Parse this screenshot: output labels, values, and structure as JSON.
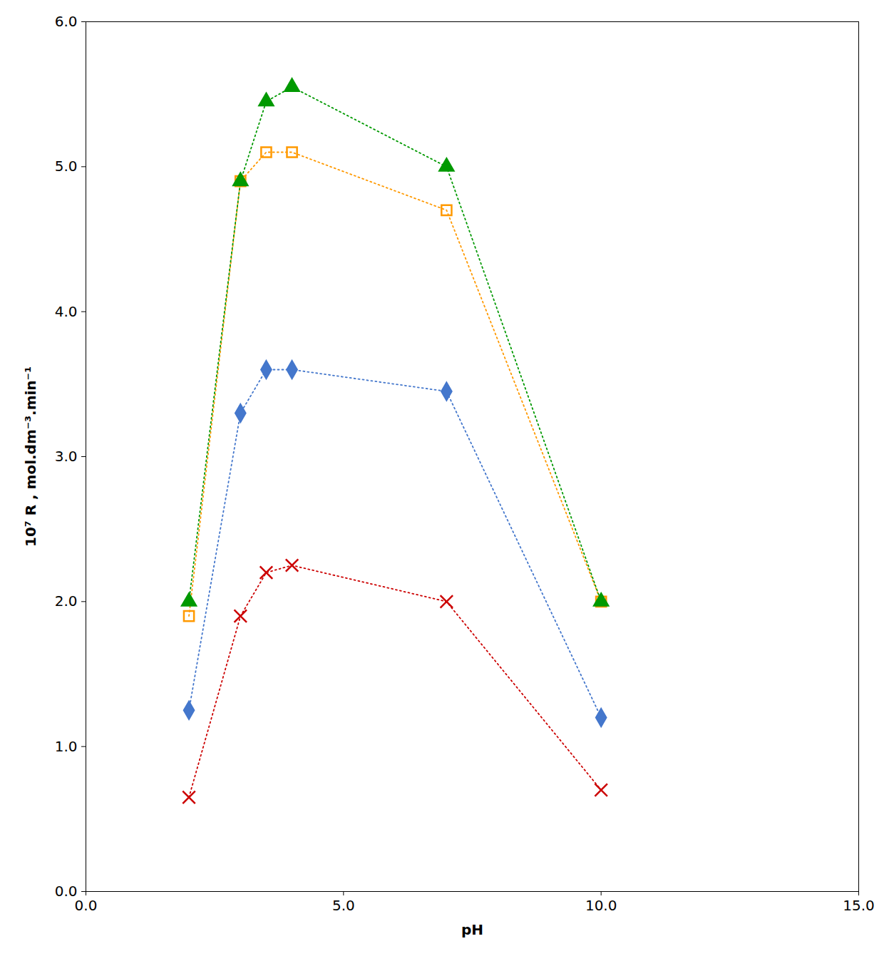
{
  "chart_data": {
    "type": "line",
    "xlabel": "pH",
    "ylabel": "10⁷ R , mol.dm⁻³.min⁻¹",
    "x": [
      2.0,
      3.0,
      3.5,
      4.0,
      7.0,
      10.0
    ],
    "series": [
      {
        "color": "#cc0000",
        "marker": "x",
        "line_style": "dotted",
        "values": [
          0.65,
          1.9,
          2.2,
          2.25,
          2.0,
          0.7
        ]
      },
      {
        "color": "#4477cc",
        "marker": "diamond",
        "line_style": "dotted",
        "values": [
          1.25,
          3.3,
          3.6,
          3.6,
          3.45,
          1.2
        ]
      },
      {
        "color": "#ff9900",
        "marker": "open_square",
        "line_style": "dotted",
        "values": [
          1.9,
          4.9,
          5.1,
          5.1,
          4.7,
          2.0
        ]
      },
      {
        "color": "#009900",
        "marker": "triangle",
        "line_style": "dotted",
        "values": [
          2.0,
          4.9,
          5.45,
          5.55,
          5.0,
          2.0
        ]
      }
    ],
    "xlim": [
      0,
      15
    ],
    "ylim": [
      0,
      6
    ],
    "xticks": [
      {
        "value": 0,
        "label": "0.0"
      },
      {
        "value": 5,
        "label": "5.0"
      },
      {
        "value": 10,
        "label": "10.0"
      },
      {
        "value": 15,
        "label": "15.0"
      }
    ],
    "yticks": [
      {
        "value": 0,
        "label": "0.0"
      },
      {
        "value": 1,
        "label": "1.0"
      },
      {
        "value": 2,
        "label": "2.0"
      },
      {
        "value": 3,
        "label": "3.0"
      },
      {
        "value": 4,
        "label": "4.0"
      },
      {
        "value": 5,
        "label": "5.0"
      },
      {
        "value": 6,
        "label": "6.0"
      }
    ],
    "grid": false
  }
}
